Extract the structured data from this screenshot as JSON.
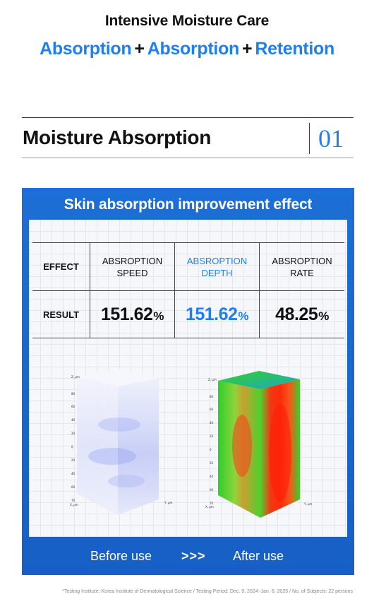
{
  "header": {
    "title": "Intensive Moisture Care",
    "sub": {
      "word1": "Absorption",
      "plus1": "+",
      "word2": "Absorption",
      "plus2": "+",
      "word3": "Retention"
    }
  },
  "section": {
    "title": "Moisture Absorption",
    "number": "01"
  },
  "panel": {
    "title": "Skin absorption improvement effect",
    "table": {
      "effect_label": "EFFECT",
      "result_label": "RESULT",
      "columns": [
        {
          "line1": "ABSROPTION",
          "line2": "SPEED",
          "value": "151.62",
          "unit": "%",
          "highlight": false
        },
        {
          "line1": "ABSROPTION",
          "line2": "DEPTH",
          "value": "151.62",
          "unit": "%",
          "highlight": true
        },
        {
          "line1": "ABSROPTION",
          "line2": "RATE",
          "value": "48.25",
          "unit": "%",
          "highlight": false
        }
      ]
    },
    "before_label": "Before use",
    "arrows": ">>>",
    "after_label": "After use"
  },
  "colors": {
    "accent": "#1f7ff0",
    "panel": "#1a69d0"
  },
  "note": "*Testing Institute: Korea Institute of Dermatological Science / Testing Period: Dec. 9, 2024~Jan. 6, 2025 / No. of Subjects: 22 persons"
}
